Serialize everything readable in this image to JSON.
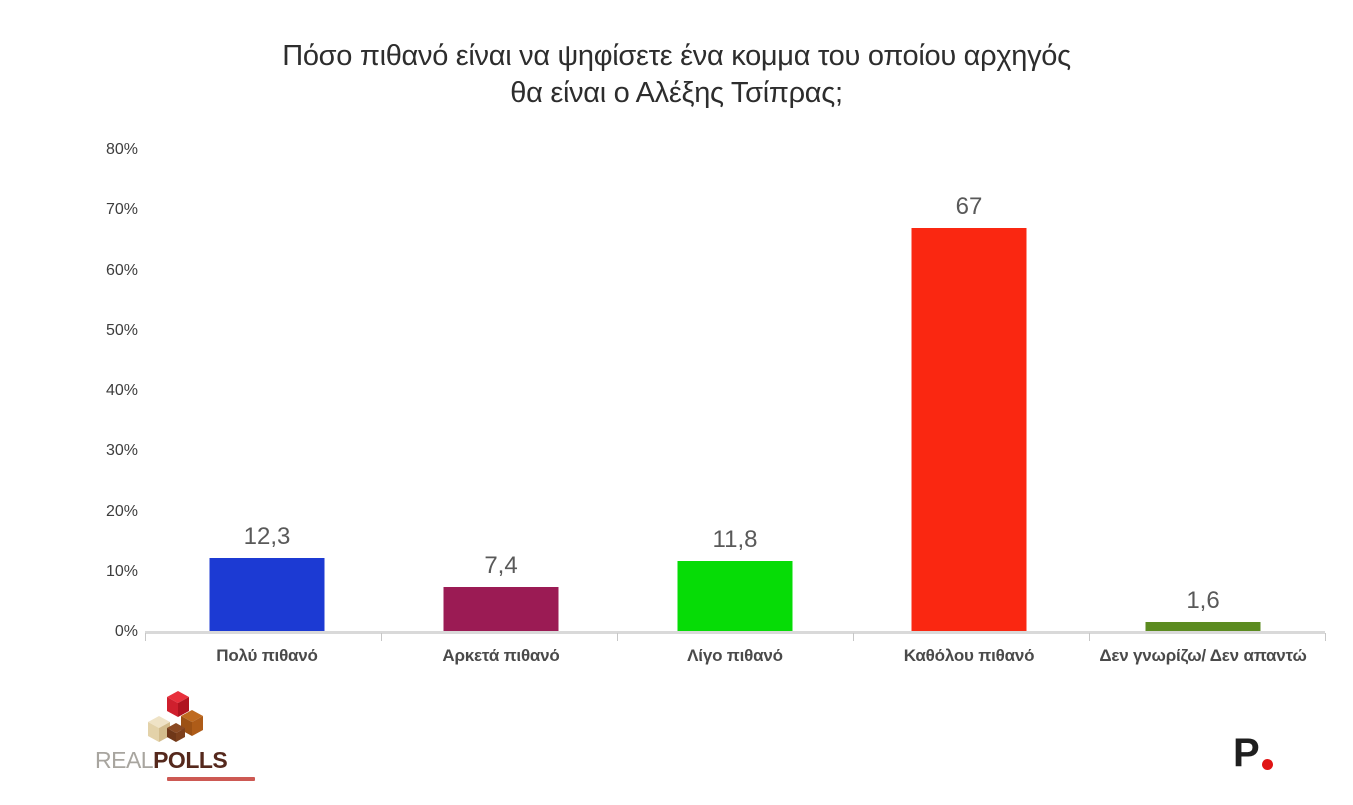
{
  "chart_data": {
    "type": "bar",
    "title": "Πόσο πιθανό είναι να ψηφίσετε ένα κομμα του οποίου αρχηγός θα είναι ο Αλέξης Τσίπρας;",
    "title_line1": "Πόσο πιθανό είναι να ψηφίσετε ένα κομμα του οποίου αρχηγός",
    "title_line2": "θα είναι ο Αλέξης Τσίπρας;",
    "categories": [
      "Πολύ πιθανό",
      "Αρκετά πιθανό",
      "Λίγο πιθανό",
      "Καθόλου πιθανό",
      "Δεν γνωρίζω/ Δεν απαντώ"
    ],
    "values": [
      12.3,
      7.4,
      11.8,
      67,
      1.6
    ],
    "value_labels": [
      "12,3",
      "7,4",
      "11,8",
      "67",
      "1,6"
    ],
    "bar_colors": [
      "#1c3ad3",
      "#9b1b54",
      "#06dc06",
      "#fa2711",
      "#5c8b20"
    ],
    "xlabel": "",
    "ylabel": "",
    "ylim": [
      0,
      80
    ],
    "yticks": [
      "80%",
      "70%",
      "60%",
      "50%",
      "40%",
      "30%",
      "20%",
      "10%",
      "0%"
    ],
    "grid": false,
    "legend": false
  },
  "footer": {
    "left_logo": {
      "text_real": "REAL",
      "text_polls": "POLLS"
    },
    "right_logo": {
      "letter": "P"
    }
  }
}
